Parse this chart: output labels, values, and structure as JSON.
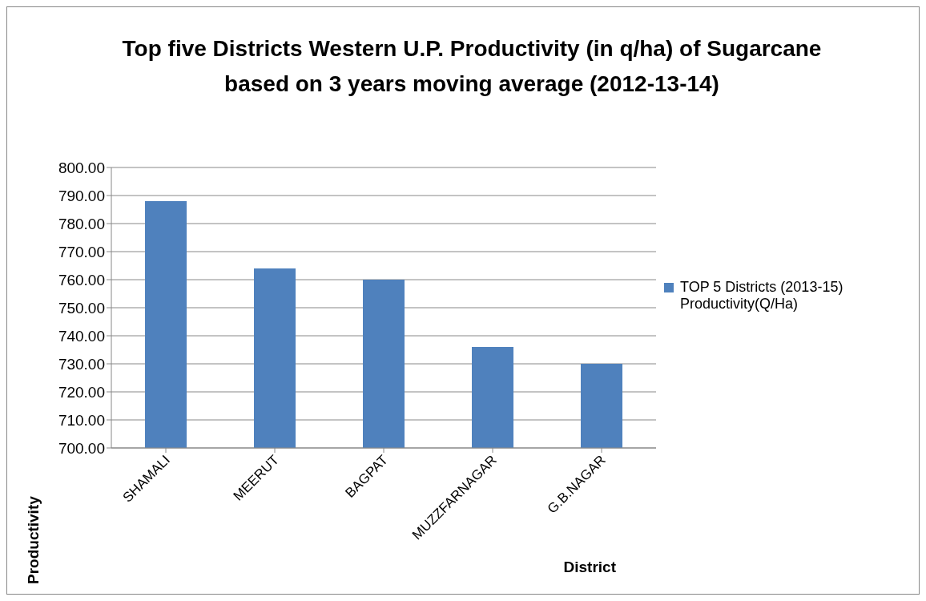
{
  "chart_data": {
    "type": "bar",
    "title": "Top five Districts Western U.P. Productivity (in q/ha) of Sugarcane based on 3 years moving average (2012-13-14)",
    "xlabel": "District",
    "ylabel": "Productivity",
    "categories": [
      "SHAMALI",
      "MEERUT",
      "BAGPAT",
      "MUZZFARNAGAR",
      "G.B.NAGAR"
    ],
    "series": [
      {
        "name": "TOP 5 Districts (2013-15) Productivity(Q/Ha)",
        "color": "#4f81bd",
        "values": [
          788,
          764,
          760,
          736,
          730
        ]
      }
    ],
    "ylim": [
      700,
      800
    ],
    "yticks": [
      {
        "value": 700,
        "label": "700.00"
      },
      {
        "value": 710,
        "label": "710.00"
      },
      {
        "value": 720,
        "label": "720.00"
      },
      {
        "value": 730,
        "label": "730.00"
      },
      {
        "value": 740,
        "label": "740.00"
      },
      {
        "value": 750,
        "label": "750.00"
      },
      {
        "value": 760,
        "label": "760.00"
      },
      {
        "value": 770,
        "label": "770.00"
      },
      {
        "value": 780,
        "label": "780.00"
      },
      {
        "value": 790,
        "label": "790.00"
      },
      {
        "value": 800,
        "label": "800.00"
      }
    ],
    "grid": "y",
    "legend": "right"
  }
}
